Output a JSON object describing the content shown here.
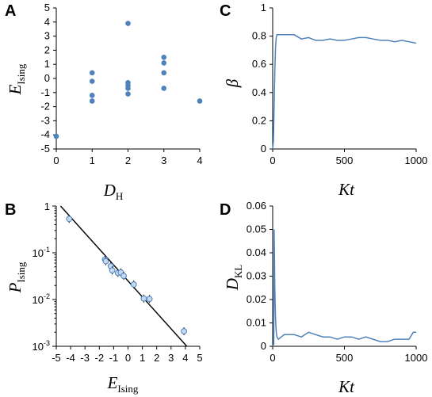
{
  "panels": {
    "A": {
      "letter": "A",
      "xlabel": {
        "main": "D",
        "sub": "H"
      },
      "ylabel": {
        "main": "E",
        "sub": "Ising"
      }
    },
    "B": {
      "letter": "B",
      "xlabel": {
        "main": "E",
        "sub": "Ising"
      },
      "ylabel": {
        "main": "P",
        "sub": "Ising"
      }
    },
    "C": {
      "letter": "C",
      "xlabel": {
        "main": "Kt",
        "sub": ""
      },
      "ylabel": {
        "main": "β",
        "sub": ""
      }
    },
    "D": {
      "letter": "D",
      "xlabel": {
        "main": "Kt",
        "sub": ""
      },
      "ylabel": {
        "main": "D",
        "sub": "KL"
      }
    }
  },
  "colors": {
    "series": "#4f81bd",
    "marker_fill": "#c5d9f1",
    "line": "#000000"
  },
  "chart_data": [
    {
      "id": "A",
      "type": "scatter",
      "xlim": [
        0,
        4
      ],
      "ylim": [
        -5,
        5
      ],
      "xticks": [
        "0",
        "1",
        "2",
        "3",
        "4"
      ],
      "yticks": [
        "-5",
        "-4",
        "-3",
        "-2",
        "-1",
        "0",
        "1",
        "2",
        "3",
        "4",
        "5"
      ],
      "points": [
        {
          "x": 0,
          "y": -4.1
        },
        {
          "x": 1,
          "y": 0.4
        },
        {
          "x": 1,
          "y": -0.2
        },
        {
          "x": 1,
          "y": -1.2
        },
        {
          "x": 1,
          "y": -1.6
        },
        {
          "x": 2,
          "y": 3.9
        },
        {
          "x": 2,
          "y": -0.3
        },
        {
          "x": 2,
          "y": -0.5
        },
        {
          "x": 2,
          "y": -0.7
        },
        {
          "x": 2,
          "y": -1.1
        },
        {
          "x": 3,
          "y": 1.5
        },
        {
          "x": 3,
          "y": 1.1
        },
        {
          "x": 3,
          "y": 0.4
        },
        {
          "x": 3,
          "y": -0.7
        },
        {
          "x": 4,
          "y": -1.6
        }
      ]
    },
    {
      "id": "B",
      "type": "scatter",
      "yscale": "log",
      "xlim": [
        -5,
        5
      ],
      "ylim": [
        0.001,
        1
      ],
      "xticks": [
        "-5",
        "-4",
        "-3",
        "-2",
        "-1",
        "0",
        "1",
        "2",
        "3",
        "4",
        "5"
      ],
      "yticks": [
        {
          "base": "1",
          "exp": ""
        },
        {
          "base": "10",
          "exp": "-1"
        },
        {
          "base": "10",
          "exp": "-2"
        },
        {
          "base": "10",
          "exp": "-3"
        }
      ],
      "points": [
        {
          "x": -4.1,
          "y": 0.53
        },
        {
          "x": -1.6,
          "y": 0.072
        },
        {
          "x": -1.55,
          "y": 0.066
        },
        {
          "x": -1.2,
          "y": 0.052
        },
        {
          "x": -1.1,
          "y": 0.042
        },
        {
          "x": -0.7,
          "y": 0.037
        },
        {
          "x": -0.5,
          "y": 0.038
        },
        {
          "x": -0.3,
          "y": 0.032
        },
        {
          "x": 0.4,
          "y": 0.021
        },
        {
          "x": 1.1,
          "y": 0.0105
        },
        {
          "x": 1.5,
          "y": 0.0103
        },
        {
          "x": 3.9,
          "y": 0.0021
        }
      ],
      "fit_line": {
        "x": [
          -4.7,
          4.1
        ],
        "y": [
          1,
          0.001
        ]
      }
    },
    {
      "id": "C",
      "type": "line",
      "xlim": [
        0,
        1000
      ],
      "ylim": [
        0,
        1
      ],
      "xticks": [
        "0",
        "500",
        "1000"
      ],
      "yticks": [
        "0",
        "0.2",
        "0.4",
        "0.6",
        "0.8",
        "1"
      ],
      "x": [
        0,
        5,
        10,
        15,
        20,
        25,
        30,
        40,
        60,
        100,
        150,
        200,
        250,
        300,
        350,
        400,
        450,
        500,
        550,
        600,
        650,
        700,
        750,
        800,
        850,
        900,
        950,
        1000
      ],
      "y": [
        0,
        0.05,
        0.3,
        0.55,
        0.72,
        0.79,
        0.81,
        0.81,
        0.81,
        0.81,
        0.81,
        0.78,
        0.79,
        0.77,
        0.77,
        0.78,
        0.77,
        0.77,
        0.78,
        0.79,
        0.79,
        0.78,
        0.77,
        0.77,
        0.76,
        0.77,
        0.76,
        0.75
      ]
    },
    {
      "id": "D",
      "type": "line",
      "xlim": [
        0,
        1000
      ],
      "ylim": [
        0,
        0.06
      ],
      "xticks": [
        "0",
        "500",
        "1000"
      ],
      "yticks": [
        "0",
        "0.01",
        "0.02",
        "0.03",
        "0.04",
        "0.05",
        "0.06"
      ],
      "x": [
        0,
        8,
        10,
        12,
        15,
        20,
        25,
        30,
        40,
        60,
        80,
        100,
        150,
        200,
        250,
        300,
        350,
        400,
        450,
        500,
        550,
        600,
        650,
        700,
        750,
        800,
        850,
        900,
        950,
        980,
        1000
      ],
      "y": [
        0,
        0.001,
        0.05,
        0.04,
        0.025,
        0.012,
        0.006,
        0.004,
        0.003,
        0.004,
        0.005,
        0.005,
        0.005,
        0.004,
        0.006,
        0.005,
        0.004,
        0.004,
        0.003,
        0.004,
        0.004,
        0.003,
        0.004,
        0.003,
        0.002,
        0.002,
        0.003,
        0.003,
        0.003,
        0.006,
        0.006
      ]
    }
  ]
}
